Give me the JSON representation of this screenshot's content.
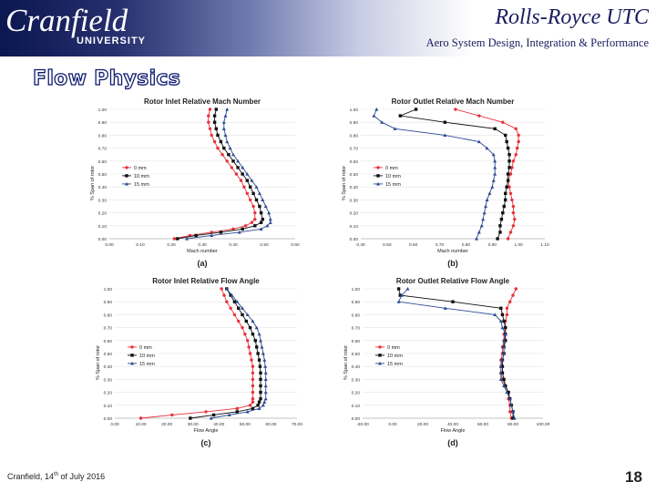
{
  "header": {
    "logo_name": "Cranfield",
    "logo_sub": "UNIVERSITY",
    "org": "Rolls-Royce UTC",
    "subtitle": "Aero System Design, Integration & Performance"
  },
  "page_title": "Flow Physics",
  "footer": {
    "pre": "Cranfield, 14",
    "sup": "th",
    "post": " of July 2016"
  },
  "page_number": "18",
  "colors": {
    "series": [
      "#e8323a",
      "#111111",
      "#2b4a92"
    ]
  },
  "chart_data": [
    {
      "type": "line",
      "title": "Rotor Inlet Relative Mach Number",
      "xlabel": "Mach number",
      "ylabel": "% Span of rotor",
      "caption": "(a)",
      "xlim": [
        0.0,
        0.6
      ],
      "ylim": [
        0.0,
        1.0
      ],
      "xticks": [
        "0.00",
        "0.10",
        "0.20",
        "0.30",
        "0.40",
        "0.50",
        "0.60"
      ],
      "yticks": [
        "0.00",
        "0.10",
        "0.20",
        "0.30",
        "0.40",
        "0.50",
        "0.60",
        "0.70",
        "0.80",
        "0.90",
        "1.00"
      ],
      "y": [
        0.0,
        0.025,
        0.05,
        0.075,
        0.1,
        0.125,
        0.15,
        0.2,
        0.25,
        0.3,
        0.35,
        0.4,
        0.45,
        0.5,
        0.55,
        0.6,
        0.65,
        0.7,
        0.75,
        0.8,
        0.85,
        0.9,
        0.95,
        1.0
      ],
      "legend": [
        "0 mm",
        "10 mm",
        "15 mm"
      ],
      "series": [
        {
          "name": "0 mm",
          "x": [
            0.21,
            0.26,
            0.33,
            0.4,
            0.44,
            0.46,
            0.47,
            0.47,
            0.465,
            0.455,
            0.445,
            0.435,
            0.425,
            0.41,
            0.395,
            0.38,
            0.365,
            0.35,
            0.34,
            0.33,
            0.325,
            0.32,
            0.32,
            0.325
          ]
        },
        {
          "name": "10 mm",
          "x": [
            0.22,
            0.28,
            0.36,
            0.43,
            0.47,
            0.49,
            0.495,
            0.49,
            0.485,
            0.475,
            0.465,
            0.455,
            0.445,
            0.43,
            0.415,
            0.4,
            0.385,
            0.37,
            0.36,
            0.35,
            0.345,
            0.34,
            0.34,
            0.345
          ]
        },
        {
          "name": "15 mm",
          "x": [
            0.25,
            0.33,
            0.42,
            0.49,
            0.51,
            0.52,
            0.52,
            0.515,
            0.505,
            0.495,
            0.485,
            0.475,
            0.46,
            0.445,
            0.43,
            0.415,
            0.4,
            0.39,
            0.38,
            0.375,
            0.37,
            0.37,
            0.375,
            0.38
          ]
        }
      ]
    },
    {
      "type": "line",
      "title": "Rotor Outlet Relative Mach Number",
      "xlabel": "Mach number",
      "ylabel": "% Span of rotor",
      "caption": "(b)",
      "xlim": [
        0.4,
        1.1
      ],
      "ylim": [
        0.0,
        1.0
      ],
      "xticks": [
        "0.40",
        "0.50",
        "0.60",
        "0.70",
        "0.80",
        "0.90",
        "1.00",
        "1.10"
      ],
      "yticks": [
        "0.00",
        "0.10",
        "0.20",
        "0.30",
        "0.40",
        "0.50",
        "0.60",
        "0.70",
        "0.80",
        "0.90",
        "1.00"
      ],
      "y": [
        0.0,
        0.05,
        0.1,
        0.15,
        0.2,
        0.25,
        0.3,
        0.35,
        0.4,
        0.45,
        0.5,
        0.55,
        0.6,
        0.65,
        0.7,
        0.75,
        0.8,
        0.85,
        0.9,
        0.95,
        1.0
      ],
      "legend": [
        "0 mm",
        "10 mm",
        "15 mm"
      ],
      "series": [
        {
          "name": "0 mm",
          "x": [
            0.96,
            0.97,
            0.98,
            0.985,
            0.98,
            0.98,
            0.975,
            0.97,
            0.965,
            0.96,
            0.97,
            0.975,
            0.98,
            0.99,
            0.995,
            1.0,
            1.0,
            0.99,
            0.94,
            0.85,
            0.76
          ]
        },
        {
          "name": "10 mm",
          "x": [
            0.92,
            0.93,
            0.93,
            0.935,
            0.94,
            0.945,
            0.95,
            0.95,
            0.955,
            0.96,
            0.96,
            0.965,
            0.965,
            0.965,
            0.96,
            0.955,
            0.95,
            0.91,
            0.72,
            0.55,
            0.61
          ]
        },
        {
          "name": "15 mm",
          "x": [
            0.84,
            0.85,
            0.86,
            0.865,
            0.87,
            0.875,
            0.88,
            0.89,
            0.9,
            0.905,
            0.91,
            0.91,
            0.91,
            0.905,
            0.88,
            0.85,
            0.72,
            0.53,
            0.48,
            0.45,
            0.46
          ]
        }
      ]
    },
    {
      "type": "line",
      "title": "Rotor Inlet Relative Flow Angle",
      "xlabel": "Flow Angle",
      "ylabel": "% Span of rotor",
      "caption": "(c)",
      "xlim": [
        0.0,
        70.0
      ],
      "ylim": [
        0.0,
        1.0
      ],
      "xticks": [
        "0.00",
        "10.00",
        "20.00",
        "30.00",
        "40.00",
        "50.00",
        "60.00",
        "70.00"
      ],
      "yticks": [
        "0.00",
        "0.10",
        "0.20",
        "0.30",
        "0.40",
        "0.50",
        "0.60",
        "0.70",
        "0.80",
        "0.90",
        "1.00"
      ],
      "y": [
        0.0,
        0.025,
        0.05,
        0.075,
        0.1,
        0.125,
        0.15,
        0.2,
        0.25,
        0.3,
        0.35,
        0.4,
        0.45,
        0.5,
        0.55,
        0.6,
        0.65,
        0.7,
        0.75,
        0.8,
        0.85,
        0.9,
        0.95,
        1.0
      ],
      "legend": [
        "0 mm",
        "10 mm",
        "15 mm"
      ],
      "series": [
        {
          "name": "0 mm",
          "x": [
            10.0,
            22.0,
            35.0,
            47.0,
            52.0,
            53.0,
            53.0,
            53.0,
            53.0,
            53.0,
            53.0,
            53.0,
            52.5,
            52.0,
            51.5,
            51.0,
            50.0,
            49.0,
            47.5,
            46.0,
            44.5,
            43.0,
            42.0,
            41.0
          ]
        },
        {
          "name": "10 mm",
          "x": [
            29.0,
            38.0,
            47.0,
            53.0,
            55.0,
            55.5,
            56.0,
            56.0,
            56.0,
            56.0,
            56.0,
            55.8,
            55.5,
            55.0,
            54.5,
            54.0,
            53.0,
            52.0,
            50.5,
            49.0,
            47.5,
            46.0,
            44.5,
            43.0
          ]
        },
        {
          "name": "15 mm",
          "x": [
            37.0,
            44.0,
            51.0,
            55.5,
            57.0,
            57.5,
            58.0,
            58.0,
            58.0,
            58.0,
            58.0,
            57.8,
            57.5,
            57.0,
            56.5,
            56.0,
            55.5,
            54.5,
            53.0,
            51.0,
            49.0,
            47.0,
            45.0,
            43.0
          ]
        }
      ]
    },
    {
      "type": "line",
      "title": "Rotor Outlet Relative Flow Angle",
      "xlabel": "Flow Angle",
      "ylabel": "% Span of rotor",
      "caption": "(d)",
      "xlim": [
        -20.0,
        100.0
      ],
      "ylim": [
        0.0,
        1.0
      ],
      "xticks": [
        "-20.00",
        "0.00",
        "20.00",
        "40.00",
        "60.00",
        "80.00",
        "100.00"
      ],
      "yticks": [
        "0.00",
        "0.10",
        "0.20",
        "0.30",
        "0.40",
        "0.50",
        "0.60",
        "0.70",
        "0.80",
        "0.90",
        "1.00"
      ],
      "y": [
        0.0,
        0.05,
        0.1,
        0.15,
        0.2,
        0.25,
        0.3,
        0.35,
        0.4,
        0.45,
        0.5,
        0.55,
        0.6,
        0.65,
        0.7,
        0.75,
        0.8,
        0.85,
        0.9,
        0.95,
        1.0
      ],
      "legend": [
        "0 mm",
        "10 mm",
        "15 mm"
      ],
      "series": [
        {
          "name": "0 mm",
          "x": [
            79.0,
            78.0,
            78.0,
            77.0,
            77.0,
            75.0,
            73.0,
            72.0,
            72.0,
            72.0,
            73.0,
            73.0,
            74.0,
            74.0,
            75.0,
            75.0,
            76.0,
            76.0,
            78.0,
            80.0,
            82.0
          ]
        },
        {
          "name": "10 mm",
          "x": [
            80.0,
            80.0,
            79.0,
            78.0,
            77.0,
            75.0,
            74.0,
            73.0,
            73.0,
            73.0,
            74.0,
            74.0,
            75.0,
            75.0,
            75.0,
            74.0,
            73.0,
            72.0,
            40.0,
            5.0,
            4.0
          ]
        },
        {
          "name": "15 mm",
          "x": [
            81.0,
            80.0,
            79.0,
            78.0,
            76.0,
            74.0,
            72.0,
            72.0,
            72.0,
            73.0,
            74.0,
            74.0,
            74.0,
            75.0,
            73.0,
            72.0,
            68.0,
            35.0,
            4.0,
            6.0,
            10.0
          ]
        }
      ]
    }
  ]
}
